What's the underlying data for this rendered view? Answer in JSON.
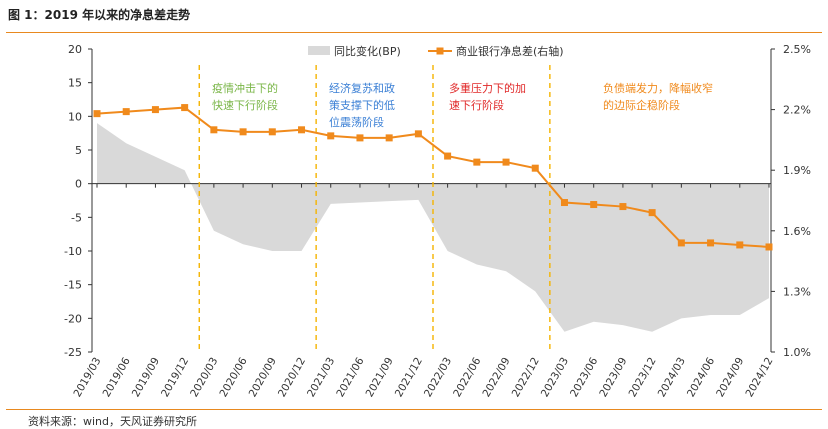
{
  "title": "图 1：2019 年以来的净息差走势",
  "source": "资料来源：wind，天风证券研究所",
  "chart_data": {
    "type": "area+line",
    "categories": [
      "2019/03",
      "2019/06",
      "2019/09",
      "2019/12",
      "2020/03",
      "2020/06",
      "2020/09",
      "2020/12",
      "2021/03",
      "2021/06",
      "2021/09",
      "2021/12",
      "2022/03",
      "2022/06",
      "2022/09",
      "2022/12",
      "2023/03",
      "2023/06",
      "2023/09",
      "2023/12",
      "2024/03",
      "2024/06",
      "2024/09",
      "2024/12"
    ],
    "series": [
      {
        "name": "同比变化(BP)",
        "type": "area",
        "axis": "left",
        "color": "#d9d9d9",
        "values": [
          9,
          6,
          4,
          2,
          -7,
          -9,
          -10,
          -10,
          -3,
          -2.8,
          -2.6,
          -2.4,
          -10,
          -12,
          -13,
          -16,
          -22,
          -20.5,
          -21,
          -22,
          -20,
          -19.5,
          -19.5,
          -17
        ]
      },
      {
        "name": "商业银行净息差(右轴)",
        "type": "line",
        "axis": "right",
        "color": "#f08a1c",
        "values": [
          2.18,
          2.19,
          2.2,
          2.21,
          2.1,
          2.09,
          2.09,
          2.1,
          2.07,
          2.06,
          2.06,
          2.08,
          1.97,
          1.94,
          1.94,
          1.91,
          1.74,
          1.73,
          1.72,
          1.69,
          1.54,
          1.54,
          1.53,
          1.52
        ]
      }
    ],
    "y_left": {
      "ticks": [
        20,
        15,
        10,
        5,
        0,
        -5,
        -10,
        -15,
        -20,
        -25
      ],
      "lim": [
        -25,
        20
      ]
    },
    "y_right": {
      "ticks": [
        "2.5%",
        "2.2%",
        "1.9%",
        "1.6%",
        "1.3%",
        "1.0%"
      ],
      "lim": [
        1.0,
        2.5
      ]
    },
    "dividers_after_index": [
      3,
      7,
      11,
      15
    ],
    "legend": {
      "position": "top-center"
    },
    "annotations": [
      {
        "lines": [
          "疫情冲击下的",
          "快速下行阶段"
        ],
        "color": "#7ab648"
      },
      {
        "lines": [
          "经济复苏和政",
          "策支撑下的低",
          "位震荡阶段"
        ],
        "color": "#3a7fd5"
      },
      {
        "lines": [
          "多重压力下的加",
          "速下行阶段"
        ],
        "color": "#e02828"
      },
      {
        "lines": [
          "负债端发力，降幅收窄",
          "的边际企稳阶段"
        ],
        "color": "#f08a1c"
      }
    ]
  }
}
